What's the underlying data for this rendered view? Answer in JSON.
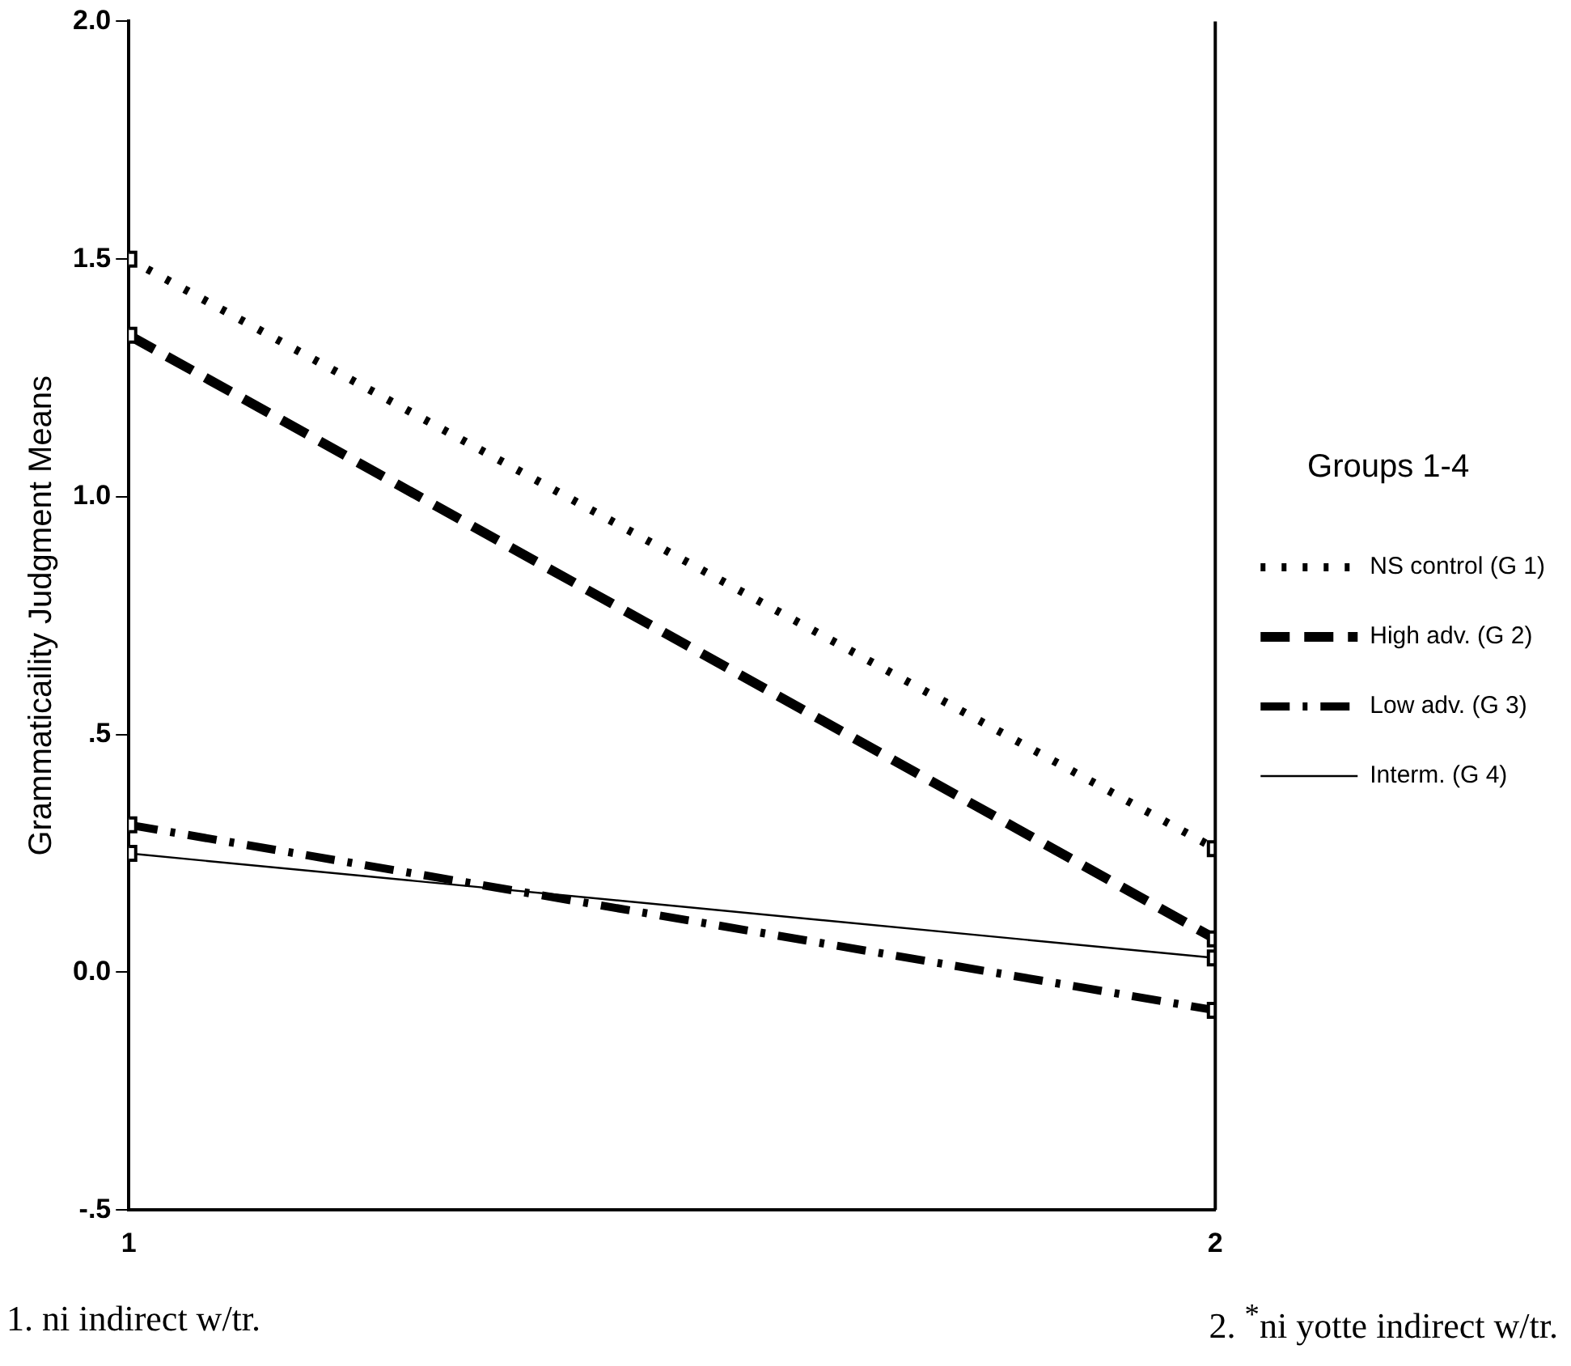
{
  "chart_data": {
    "type": "line",
    "ylabel": "Grammaticaility Judgment Means",
    "legend_title": "Groups 1-4",
    "x": [
      1,
      2
    ],
    "xlim": [
      1,
      2
    ],
    "xticks": [
      1,
      2
    ],
    "ylim": [
      -0.5,
      2
    ],
    "yticks": [
      {
        "value": -0.5,
        "label": "-.5"
      },
      {
        "value": 0,
        "label": "0.0"
      },
      {
        "value": 0.5,
        "label": ".5"
      },
      {
        "value": 1,
        "label": "1.0"
      },
      {
        "value": 1.5,
        "label": "1.5"
      },
      {
        "value": 2,
        "label": "2.0"
      }
    ],
    "series": [
      {
        "name": "NS control (G 1)",
        "color": "#000000",
        "values": [
          1.5,
          0.26
        ],
        "line_style": "dotted"
      },
      {
        "name": "High adv. (G 2)",
        "color": "#000000",
        "values": [
          1.34,
          0.07
        ],
        "line_style": "dashed"
      },
      {
        "name": "Low adv. (G 3)",
        "color": "#000000",
        "values": [
          0.31,
          -0.08
        ],
        "line_style": "dashdot"
      },
      {
        "name": "Interm. (G 4)",
        "color": "#000000",
        "values": [
          0.25,
          0.03
        ],
        "line_style": "solid"
      }
    ],
    "marker": "square",
    "grid": false,
    "legend": "right",
    "annotations": [
      "1. ni indirect w/tr.",
      "2. $^{*}$ni yotte indirect w/tr."
    ]
  }
}
